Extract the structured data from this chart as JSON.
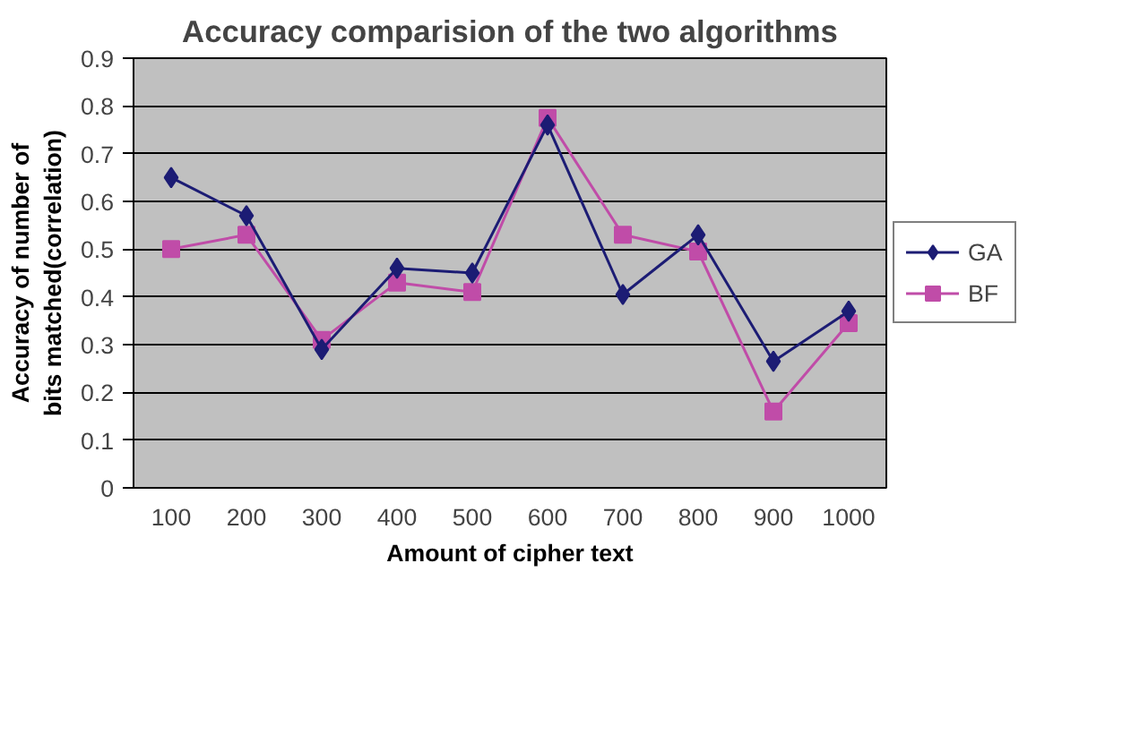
{
  "chart_data": {
    "type": "line",
    "title": "Accuracy comparision of the two algorithms",
    "xlabel": "Amount of cipher text",
    "ylabel": "Accuracy of number of bits matched(correlation)",
    "categories": [
      "100",
      "200",
      "300",
      "400",
      "500",
      "600",
      "700",
      "800",
      "900",
      "1000"
    ],
    "series": [
      {
        "name": "GA",
        "color": "#1c1c74",
        "marker": "diamond",
        "values": [
          0.65,
          0.57,
          0.29,
          0.46,
          0.45,
          0.76,
          0.405,
          0.53,
          0.265,
          0.37
        ]
      },
      {
        "name": "BF",
        "color": "#c04ca8",
        "marker": "square",
        "values": [
          0.5,
          0.53,
          0.31,
          0.43,
          0.41,
          0.775,
          0.53,
          0.495,
          0.16,
          0.345
        ]
      }
    ],
    "ylim": [
      0,
      0.9
    ],
    "yticks": [
      0,
      0.1,
      0.2,
      0.3,
      0.4,
      0.5,
      0.6,
      0.7,
      0.8,
      0.9
    ],
    "grid": "y",
    "legend": "right",
    "line_style": "solid"
  }
}
